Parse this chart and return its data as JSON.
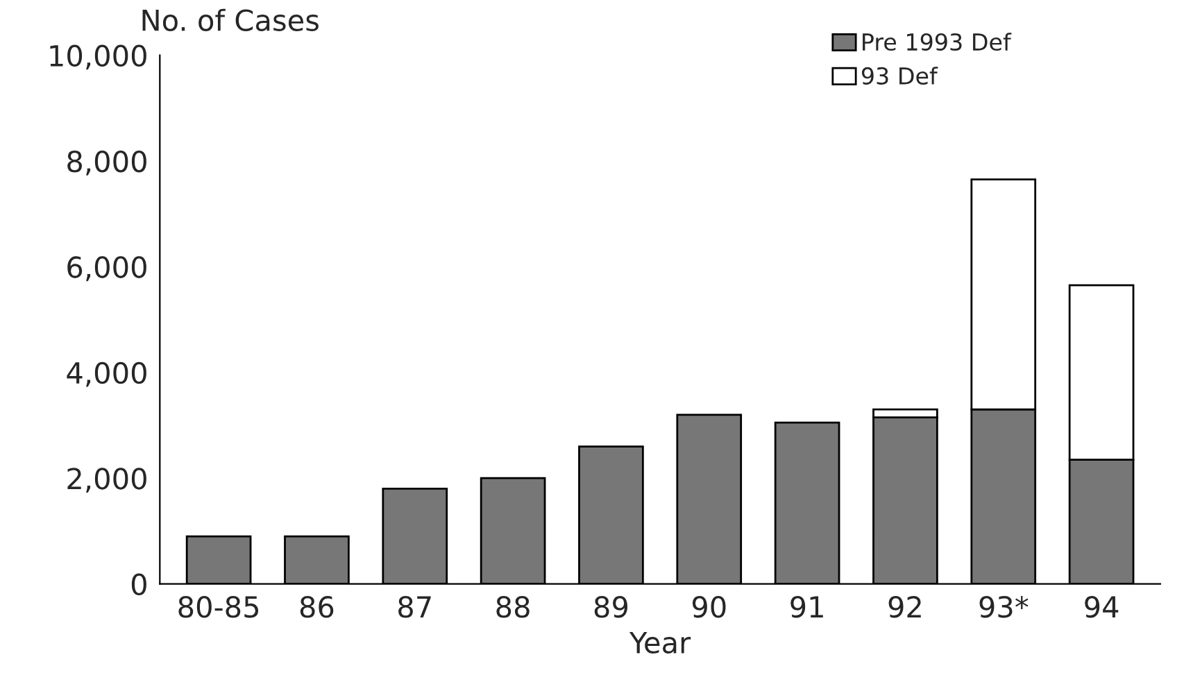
{
  "chart_data": {
    "type": "bar",
    "stacked": true,
    "ylabel": "No. of Cases",
    "xlabel": "Year",
    "categories": [
      "80-85",
      "86",
      "87",
      "88",
      "89",
      "90",
      "91",
      "92",
      "93*",
      "94"
    ],
    "series": [
      {
        "name": "Pre 1993 Def",
        "color": "#777777",
        "values": [
          900,
          900,
          1800,
          2000,
          2600,
          3200,
          3050,
          3150,
          3300,
          2350
        ]
      },
      {
        "name": "93 Def",
        "color": "#ffffff",
        "values": [
          0,
          0,
          0,
          0,
          0,
          0,
          0,
          150,
          4350,
          3300
        ]
      }
    ],
    "ylim": [
      0,
      10000
    ],
    "yticks": [
      0,
      {
        "value": 2000,
        "label": "2,000"
      },
      {
        "value": 4000,
        "label": "4,000"
      },
      {
        "value": 6000,
        "label": "6,000"
      },
      {
        "value": 8000,
        "label": "8,000"
      },
      {
        "value": 10000,
        "label": "10,000"
      }
    ],
    "grid": false,
    "legend": "top right"
  }
}
